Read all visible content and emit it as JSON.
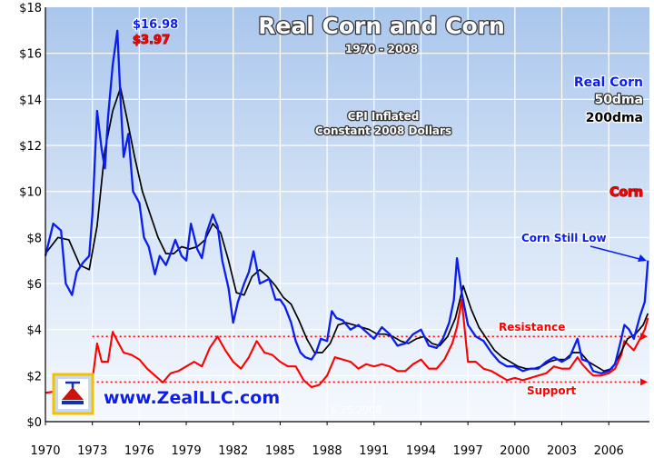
{
  "chart_data": {
    "type": "line",
    "title": "Real Corn and Corn",
    "subtitle": "1970 - 2008",
    "note": [
      "CPI Inflated",
      "Constant 2008 Dollars"
    ],
    "xlim": [
      1970,
      2008.6
    ],
    "ylim": [
      0,
      18
    ],
    "x_ticks": [
      "1970",
      "1973",
      "1976",
      "1979",
      "1982",
      "1985",
      "1988",
      "1991",
      "1994",
      "1997",
      "2000",
      "2003",
      "2006"
    ],
    "y_ticks": [
      "$0",
      "$2",
      "$4",
      "$6",
      "$8",
      "$10",
      "$12",
      "$14",
      "$16",
      "$18"
    ],
    "grid": true,
    "legend": [
      "Real Corn",
      "50dma",
      "200dma",
      "Corn"
    ],
    "series": [
      {
        "name": "Real Corn",
        "color": "#0a1ef0",
        "x": [
          1970.0,
          1970.5,
          1971.0,
          1971.3,
          1971.7,
          1972.0,
          1972.4,
          1972.8,
          1973.0,
          1973.3,
          1973.6,
          1973.8,
          1974.0,
          1974.3,
          1974.6,
          1974.8,
          1975.0,
          1975.3,
          1975.6,
          1976.0,
          1976.3,
          1976.6,
          1977.0,
          1977.3,
          1977.7,
          1978.0,
          1978.3,
          1978.7,
          1979.0,
          1979.3,
          1979.7,
          1980.0,
          1980.3,
          1980.7,
          1981.0,
          1981.3,
          1981.7,
          1982.0,
          1982.3,
          1982.7,
          1983.0,
          1983.3,
          1983.7,
          1984.0,
          1984.3,
          1984.7,
          1985.0,
          1985.3,
          1985.7,
          1986.0,
          1986.3,
          1986.6,
          1987.0,
          1987.3,
          1987.6,
          1988.0,
          1988.3,
          1988.6,
          1989.0,
          1989.5,
          1990.0,
          1990.5,
          1991.0,
          1991.5,
          1992.0,
          1992.5,
          1993.0,
          1993.5,
          1994.0,
          1994.5,
          1995.0,
          1995.4,
          1995.8,
          1996.1,
          1996.3,
          1996.6,
          1997.0,
          1997.5,
          1998.0,
          1998.5,
          1999.0,
          1999.5,
          2000.0,
          2000.5,
          2001.0,
          2001.5,
          2002.0,
          2002.5,
          2003.0,
          2003.5,
          2004.0,
          2004.3,
          2004.7,
          2005.0,
          2005.5,
          2006.0,
          2006.4,
          2006.8,
          2007.0,
          2007.3,
          2007.6,
          2008.0,
          2008.3,
          2008.5
        ],
        "y": [
          7.2,
          8.6,
          8.3,
          6.0,
          5.5,
          6.5,
          6.9,
          7.2,
          9.0,
          13.5,
          11.8,
          11.0,
          13.2,
          15.5,
          16.98,
          14.0,
          11.5,
          12.5,
          10.0,
          9.5,
          8.0,
          7.6,
          6.4,
          7.2,
          6.8,
          7.3,
          7.9,
          7.2,
          7.0,
          8.6,
          7.5,
          7.1,
          8.2,
          9.0,
          8.5,
          7.0,
          5.8,
          4.3,
          5.2,
          6.0,
          6.5,
          7.4,
          6.0,
          6.1,
          6.2,
          5.3,
          5.3,
          5.0,
          4.3,
          3.5,
          3.0,
          2.8,
          2.7,
          3.0,
          3.6,
          3.5,
          4.8,
          4.5,
          4.4,
          4.0,
          4.2,
          3.9,
          3.6,
          4.1,
          3.8,
          3.3,
          3.4,
          3.8,
          4.0,
          3.3,
          3.2,
          3.6,
          4.3,
          5.3,
          7.1,
          5.6,
          4.2,
          3.7,
          3.5,
          3.0,
          2.6,
          2.4,
          2.4,
          2.2,
          2.3,
          2.3,
          2.6,
          2.8,
          2.6,
          2.8,
          3.6,
          2.7,
          2.6,
          2.2,
          2.1,
          2.2,
          2.5,
          3.6,
          4.2,
          4.0,
          3.6,
          4.6,
          5.2,
          7.0
        ]
      },
      {
        "name": "50dma",
        "color": "#0a1ef0",
        "x": [],
        "y": []
      },
      {
        "name": "200dma",
        "color": "#000000",
        "x": [
          1970.0,
          1970.8,
          1971.5,
          1972.2,
          1972.8,
          1973.3,
          1973.8,
          1974.3,
          1974.8,
          1975.2,
          1975.7,
          1976.2,
          1976.7,
          1977.2,
          1977.7,
          1978.2,
          1978.7,
          1979.2,
          1979.7,
          1980.2,
          1980.7,
          1981.2,
          1981.7,
          1982.2,
          1982.7,
          1983.2,
          1983.7,
          1984.2,
          1984.7,
          1985.2,
          1985.7,
          1986.2,
          1986.7,
          1987.2,
          1987.7,
          1988.2,
          1988.7,
          1989.2,
          1989.7,
          1990.2,
          1990.7,
          1991.2,
          1991.7,
          1992.2,
          1992.7,
          1993.2,
          1993.7,
          1994.2,
          1994.7,
          1995.2,
          1995.7,
          1996.2,
          1996.7,
          1997.2,
          1997.7,
          1998.2,
          1998.7,
          1999.2,
          1999.7,
          2000.2,
          2000.7,
          2001.2,
          2001.7,
          2002.2,
          2002.7,
          2003.2,
          2003.7,
          2004.2,
          2004.7,
          2005.2,
          2005.7,
          2006.2,
          2006.7,
          2007.2,
          2007.7,
          2008.2,
          2008.5
        ],
        "y": [
          7.3,
          8.0,
          7.9,
          6.8,
          6.6,
          8.5,
          11.8,
          13.5,
          14.5,
          13.2,
          11.5,
          10.0,
          9.0,
          8.0,
          7.3,
          7.3,
          7.6,
          7.5,
          7.6,
          7.9,
          8.6,
          8.2,
          7.0,
          5.6,
          5.5,
          6.3,
          6.6,
          6.3,
          5.9,
          5.4,
          5.1,
          4.4,
          3.6,
          3.0,
          3.0,
          3.4,
          4.2,
          4.3,
          4.2,
          4.1,
          4.0,
          3.8,
          3.8,
          3.7,
          3.5,
          3.4,
          3.6,
          3.7,
          3.4,
          3.3,
          3.7,
          4.5,
          5.9,
          4.9,
          4.1,
          3.6,
          3.1,
          2.8,
          2.6,
          2.4,
          2.3,
          2.3,
          2.4,
          2.6,
          2.7,
          2.7,
          3.0,
          3.0,
          2.6,
          2.4,
          2.2,
          2.3,
          2.9,
          3.6,
          3.8,
          4.2,
          4.7
        ]
      },
      {
        "name": "Corn",
        "color": "#ff0000",
        "x": [
          1970.0,
          1970.5,
          1971.0,
          1971.5,
          1972.0,
          1972.5,
          1973.0,
          1973.3,
          1973.6,
          1974.0,
          1974.3,
          1974.6,
          1975.0,
          1975.5,
          1976.0,
          1976.5,
          1977.0,
          1977.5,
          1978.0,
          1978.5,
          1979.0,
          1979.5,
          1980.0,
          1980.5,
          1981.0,
          1981.5,
          1982.0,
          1982.5,
          1983.0,
          1983.5,
          1984.0,
          1984.5,
          1985.0,
          1985.5,
          1986.0,
          1986.5,
          1987.0,
          1987.5,
          1988.0,
          1988.5,
          1989.0,
          1989.5,
          1990.0,
          1990.5,
          1991.0,
          1991.5,
          1992.0,
          1992.5,
          1993.0,
          1993.5,
          1994.0,
          1994.5,
          1995.0,
          1995.5,
          1996.0,
          1996.3,
          1996.6,
          1997.0,
          1997.5,
          1998.0,
          1998.5,
          1999.0,
          1999.5,
          2000.0,
          2000.5,
          2001.0,
          2001.5,
          2002.0,
          2002.5,
          2003.0,
          2003.5,
          2004.0,
          2004.3,
          2004.7,
          2005.0,
          2005.5,
          2006.0,
          2006.4,
          2006.8,
          2007.0,
          2007.3,
          2007.6,
          2008.0,
          2008.3,
          2008.5
        ],
        "y": [
          1.25,
          1.3,
          1.4,
          1.2,
          1.3,
          1.4,
          1.8,
          3.4,
          2.6,
          2.6,
          3.9,
          3.5,
          3.0,
          2.9,
          2.7,
          2.3,
          2.0,
          1.7,
          2.1,
          2.2,
          2.4,
          2.6,
          2.4,
          3.2,
          3.7,
          3.1,
          2.6,
          2.3,
          2.8,
          3.5,
          3.0,
          2.9,
          2.6,
          2.4,
          2.4,
          1.8,
          1.5,
          1.6,
          2.0,
          2.8,
          2.7,
          2.6,
          2.3,
          2.5,
          2.4,
          2.5,
          2.4,
          2.2,
          2.2,
          2.5,
          2.7,
          2.3,
          2.3,
          2.7,
          3.4,
          4.1,
          5.3,
          2.6,
          2.6,
          2.3,
          2.2,
          2.0,
          1.8,
          1.9,
          1.8,
          1.9,
          2.0,
          2.1,
          2.4,
          2.3,
          2.3,
          2.8,
          2.5,
          2.2,
          2.0,
          2.0,
          2.1,
          2.3,
          2.9,
          3.5,
          3.3,
          3.1,
          3.6,
          4.0,
          4.5
        ]
      }
    ],
    "reference_lines": [
      {
        "label": "Resistance",
        "y": 3.7,
        "color": "#ff0000"
      },
      {
        "label": "Support",
        "y": 1.72,
        "color": "#ff0000"
      }
    ],
    "annotations": [
      {
        "text": "$16.98",
        "color": "#0a1ef0"
      },
      {
        "text": "$3.97",
        "color": "#ff0000"
      },
      {
        "text": "Corn Still Low",
        "color": "#0a1ef0"
      },
      {
        "text": "6.25.2008",
        "color": "#ffffff"
      }
    ],
    "branding": {
      "text": "www.ZealLLC.com",
      "logo": "zeal-logo-icon"
    }
  }
}
